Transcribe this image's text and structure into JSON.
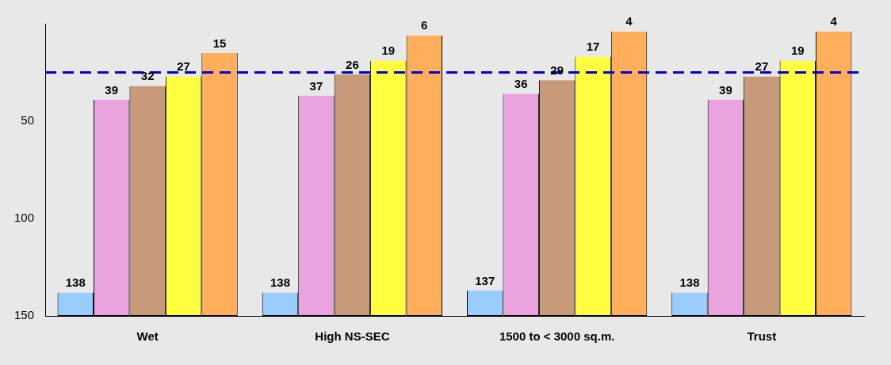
{
  "chart_data": {
    "type": "bar",
    "categories": [
      "Wet",
      "High NS-SEC",
      "1500 to < 3000 sq.m.",
      "Trust"
    ],
    "series": [
      {
        "color": "#99ccff",
        "base": [
          150,
          150,
          150,
          150
        ],
        "values": [
          -12,
          -12,
          -13,
          -12
        ],
        "value_labels": [
          "138",
          "138",
          "137",
          "138"
        ]
      },
      {
        "color": "#e8a3df",
        "base": [
          150,
          150,
          150,
          150
        ],
        "values": [
          -111,
          -113,
          -114,
          -111
        ],
        "value_labels": [
          "39",
          "37",
          "36",
          "39"
        ]
      },
      {
        "color": "#c99a79",
        "base": [
          150,
          150,
          150,
          150
        ],
        "values": [
          -118,
          -124,
          -121,
          -123
        ],
        "value_labels": [
          "32",
          "26",
          "29",
          "27"
        ]
      },
      {
        "color": "#ffff40",
        "base": [
          150,
          150,
          150,
          150
        ],
        "values": [
          -123,
          -131,
          -133,
          -131
        ],
        "value_labels": [
          "27",
          "19",
          "17",
          "19"
        ]
      },
      {
        "color": "#ffae5c",
        "base": [
          150,
          150,
          150,
          150
        ],
        "values": [
          -135,
          -144,
          -146,
          -146
        ],
        "value_labels": [
          "15",
          "6",
          "4",
          "4"
        ]
      }
    ],
    "ylim": [
      150,
      0
    ],
    "yticks": [
      50,
      100,
      150
    ],
    "grid": false,
    "legend": false,
    "ref_lines": [
      {
        "axis": "y",
        "value": 25,
        "color": "#0000cc",
        "line_style": "dashed"
      }
    ]
  }
}
